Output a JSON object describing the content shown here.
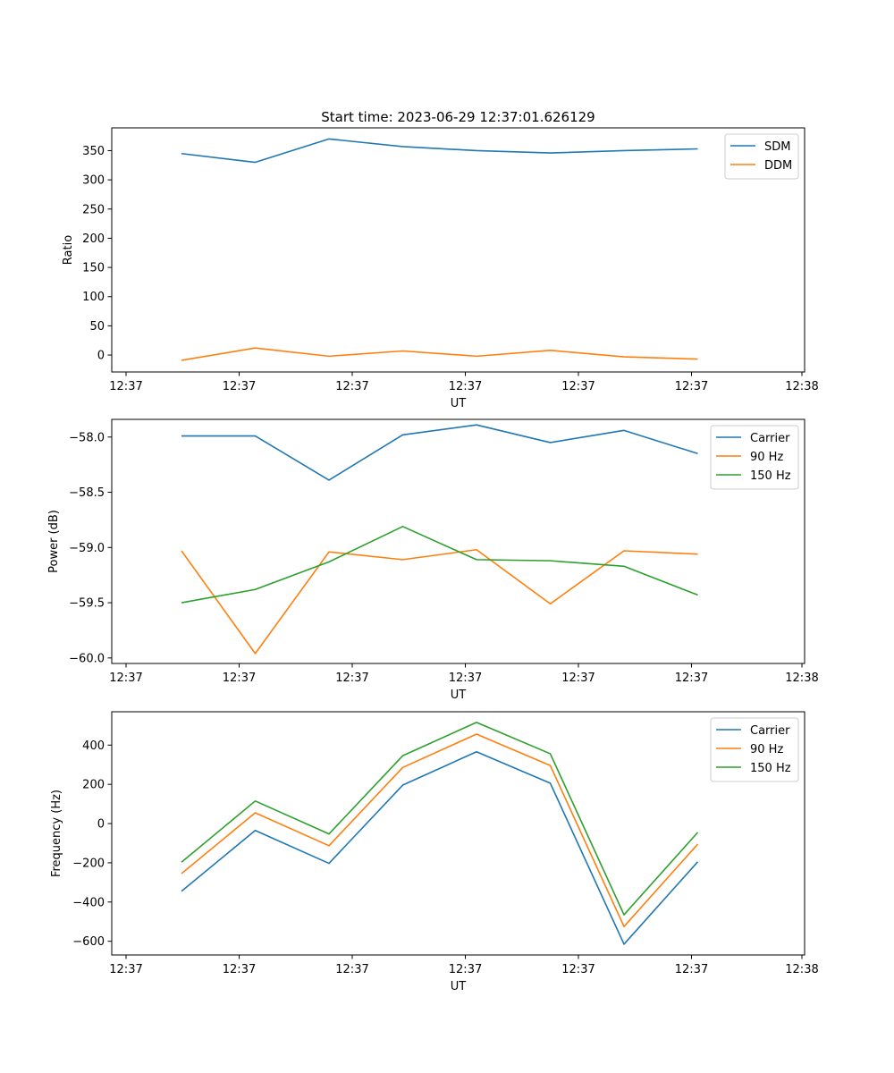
{
  "title": "Start time: 2023-06-29 12:37:01.626129",
  "colors": {
    "blue": "#1f77b4",
    "orange": "#ff7f0e",
    "green": "#2ca02c"
  },
  "chart_data": [
    {
      "type": "line",
      "xlabel": "UT",
      "ylabel": "Ratio",
      "x_tick_labels": [
        "12:37",
        "12:37",
        "12:37",
        "12:37",
        "12:37",
        "12:37",
        "12:38"
      ],
      "y_ticks": [
        0,
        50,
        100,
        150,
        200,
        250,
        300,
        350
      ],
      "y_tick_labels": [
        "0",
        "50",
        "100",
        "150",
        "200",
        "250",
        "300",
        "350"
      ],
      "ylim": [
        -29,
        389
      ],
      "legend": "top-right",
      "grid": false,
      "series": [
        {
          "name": "SDM",
          "color": "#1f77b4",
          "values": [
            345,
            330,
            370,
            357,
            350,
            346,
            350,
            353
          ]
        },
        {
          "name": "DDM",
          "color": "#ff7f0e",
          "values": [
            -9,
            12,
            -2,
            7,
            -2,
            8,
            -3,
            -7
          ]
        }
      ]
    },
    {
      "type": "line",
      "xlabel": "UT",
      "ylabel": "Power (dB)",
      "x_tick_labels": [
        "12:37",
        "12:37",
        "12:37",
        "12:37",
        "12:37",
        "12:37",
        "12:38"
      ],
      "y_ticks": [
        -60.0,
        -59.5,
        -59.0,
        -58.5,
        -58.0
      ],
      "y_tick_labels": [
        "−60.0",
        "−59.5",
        "−59.0",
        "−58.5",
        "−58.0"
      ],
      "ylim": [
        -60.05,
        -57.84
      ],
      "legend": "top-right",
      "grid": false,
      "series": [
        {
          "name": "Carrier",
          "color": "#1f77b4",
          "values": [
            -57.99,
            -57.99,
            -58.39,
            -57.98,
            -57.89,
            -58.05,
            -57.94,
            -58.15
          ]
        },
        {
          "name": "90 Hz",
          "color": "#ff7f0e",
          "values": [
            -59.03,
            -59.96,
            -59.04,
            -59.11,
            -59.02,
            -59.51,
            -59.03,
            -59.06
          ]
        },
        {
          "name": "150 Hz",
          "color": "#2ca02c",
          "values": [
            -59.5,
            -59.38,
            -59.13,
            -58.81,
            -59.11,
            -59.12,
            -59.17,
            -59.43
          ]
        }
      ]
    },
    {
      "type": "line",
      "xlabel": "UT",
      "ylabel": "Frequency (Hz)",
      "x_tick_labels": [
        "12:37",
        "12:37",
        "12:37",
        "12:37",
        "12:37",
        "12:37",
        "12:38"
      ],
      "y_ticks": [
        -600,
        -400,
        -200,
        0,
        200,
        400
      ],
      "y_tick_labels": [
        "−600",
        "−400",
        "−200",
        "0",
        "200",
        "400"
      ],
      "ylim": [
        -670,
        570
      ],
      "legend": "top-right",
      "grid": false,
      "series": [
        {
          "name": "Carrier",
          "color": "#1f77b4",
          "values": [
            -345,
            -35,
            -203,
            196,
            366,
            206,
            -615,
            -195
          ]
        },
        {
          "name": "90 Hz",
          "color": "#ff7f0e",
          "values": [
            -255,
            55,
            -113,
            286,
            456,
            296,
            -525,
            -105
          ]
        },
        {
          "name": "150 Hz",
          "color": "#2ca02c",
          "values": [
            -197,
            115,
            -53,
            346,
            516,
            356,
            -465,
            -45
          ]
        }
      ]
    }
  ]
}
